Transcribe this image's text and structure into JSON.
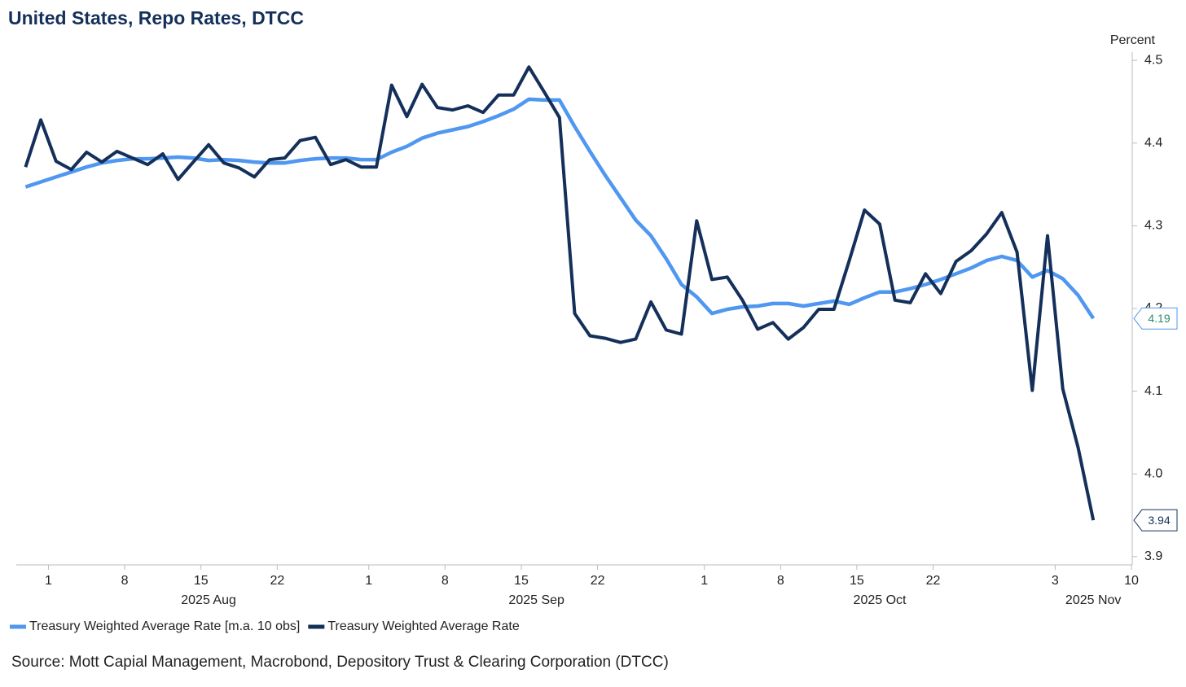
{
  "chart_data": {
    "type": "line",
    "title": "United States, Repo Rates, DTCC",
    "y_axis_label": "Percent",
    "source": "Source: Mott Capial Management, Macrobond, Depository Trust & Clearing Corporation (DTCC)",
    "x": [
      "2025-07-30",
      "2025-07-31",
      "2025-08-01",
      "2025-08-04",
      "2025-08-05",
      "2025-08-06",
      "2025-08-07",
      "2025-08-08",
      "2025-08-11",
      "2025-08-12",
      "2025-08-13",
      "2025-08-14",
      "2025-08-15",
      "2025-08-18",
      "2025-08-19",
      "2025-08-20",
      "2025-08-21",
      "2025-08-22",
      "2025-08-25",
      "2025-08-26",
      "2025-08-27",
      "2025-08-28",
      "2025-08-29",
      "2025-09-01",
      "2025-09-02",
      "2025-09-03",
      "2025-09-04",
      "2025-09-05",
      "2025-09-08",
      "2025-09-09",
      "2025-09-10",
      "2025-09-11",
      "2025-09-12",
      "2025-09-15",
      "2025-09-16",
      "2025-09-17",
      "2025-09-18",
      "2025-09-19",
      "2025-09-22",
      "2025-09-23",
      "2025-09-24",
      "2025-09-25",
      "2025-09-26",
      "2025-09-29",
      "2025-09-30",
      "2025-10-01",
      "2025-10-02",
      "2025-10-03",
      "2025-10-06",
      "2025-10-07",
      "2025-10-08",
      "2025-10-09",
      "2025-10-10",
      "2025-10-13",
      "2025-10-14",
      "2025-10-15",
      "2025-10-16",
      "2025-10-17",
      "2025-10-20",
      "2025-10-21",
      "2025-10-22",
      "2025-10-23",
      "2025-10-24",
      "2025-10-27",
      "2025-10-28",
      "2025-10-29",
      "2025-10-30",
      "2025-10-31",
      "2025-11-03",
      "2025-11-04",
      "2025-11-05"
    ],
    "series": [
      {
        "name": "Treasury Weighted Average Rate [m.a. 10 obs]",
        "color": "#4f97f0",
        "width": 4.5,
        "last_value_label": "4.19",
        "label_text_color": "#2e8b6e",
        "values": [
          4.347,
          4.353,
          4.359,
          4.365,
          4.371,
          4.376,
          4.379,
          4.381,
          4.381,
          4.382,
          4.383,
          4.382,
          4.379,
          4.38,
          4.379,
          4.377,
          4.376,
          4.376,
          4.379,
          4.381,
          4.382,
          4.382,
          4.38,
          4.38,
          4.389,
          4.396,
          4.406,
          4.412,
          4.416,
          4.42,
          4.426,
          4.433,
          4.441,
          4.453,
          4.452,
          4.452,
          4.42,
          4.39,
          4.361,
          4.334,
          4.307,
          4.288,
          4.26,
          4.229,
          4.214,
          4.194,
          4.199,
          4.202,
          4.203,
          4.206,
          4.206,
          4.203,
          4.206,
          4.209,
          4.205,
          4.213,
          4.22,
          4.22,
          4.224,
          4.229,
          4.235,
          4.242,
          4.249,
          4.258,
          4.263,
          4.258,
          4.238,
          4.246,
          4.236,
          4.216,
          4.188
        ]
      },
      {
        "name": "Treasury Weighted Average Rate",
        "color": "#14305a",
        "width": 4,
        "last_value_label": "3.94",
        "label_text_color": "#14305a",
        "values": [
          4.371,
          4.428,
          4.378,
          4.368,
          4.389,
          4.377,
          4.39,
          4.382,
          4.374,
          4.387,
          4.356,
          4.377,
          4.398,
          4.376,
          4.37,
          4.359,
          4.38,
          4.382,
          4.403,
          4.407,
          4.374,
          4.38,
          4.371,
          4.371,
          4.47,
          4.432,
          4.471,
          4.443,
          4.44,
          4.445,
          4.437,
          4.458,
          4.458,
          4.492,
          4.462,
          4.431,
          4.194,
          4.167,
          4.164,
          4.159,
          4.163,
          4.208,
          4.174,
          4.169,
          4.306,
          4.235,
          4.238,
          4.21,
          4.175,
          4.183,
          4.163,
          4.177,
          4.199,
          4.199,
          4.258,
          4.319,
          4.302,
          4.21,
          4.207,
          4.242,
          4.218,
          4.257,
          4.27,
          4.29,
          4.316,
          4.268,
          4.101,
          4.288,
          4.103,
          4.032,
          3.944
        ]
      }
    ],
    "xlim": [
      "2025-07-30",
      "2025-11-10"
    ],
    "xticks": [
      {
        "value": "2025-08-01",
        "label": "1"
      },
      {
        "value": "2025-08-08",
        "label": "8"
      },
      {
        "value": "2025-08-15",
        "label": "15"
      },
      {
        "value": "2025-08-22",
        "label": "22"
      },
      {
        "value": "2025-09-01",
        "label": "1"
      },
      {
        "value": "2025-09-08",
        "label": "8"
      },
      {
        "value": "2025-09-15",
        "label": "15"
      },
      {
        "value": "2025-09-22",
        "label": "22"
      },
      {
        "value": "2025-10-01",
        "label": "1"
      },
      {
        "value": "2025-10-08",
        "label": "8"
      },
      {
        "value": "2025-10-15",
        "label": "15"
      },
      {
        "value": "2025-10-22",
        "label": "22"
      },
      {
        "value": "2025-11-03",
        "label": "3"
      },
      {
        "value": "2025-11-10",
        "label": "10"
      }
    ],
    "x_group_labels": [
      "2025 Aug",
      "2025 Sep",
      "2025 Oct",
      "2025 Nov"
    ],
    "ylim": [
      3.89,
      4.51
    ],
    "yticks": [
      4.5,
      4.4,
      4.3,
      4.2,
      4.1,
      {
        "value": 4,
        "label": "4.0"
      },
      3.9
    ],
    "grid": false,
    "legend": "bottom-left"
  }
}
